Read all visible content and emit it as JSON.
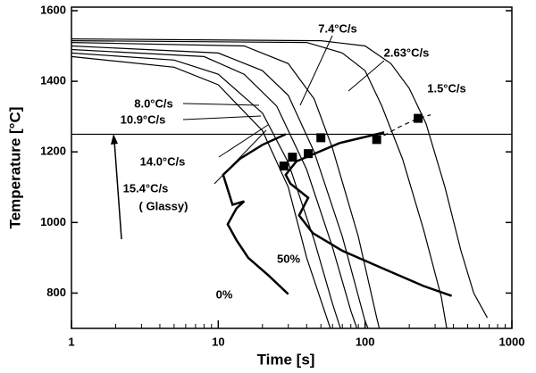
{
  "chart_data": {
    "type": "line",
    "xlabel": "Time [s]",
    "ylabel": "Temperature [°C]",
    "xscale": "log",
    "xlim": [
      1,
      1000
    ],
    "ylim": [
      700,
      1610
    ],
    "xticks": [
      1,
      10,
      100,
      1000
    ],
    "yticks": [
      800,
      1000,
      1200,
      1400,
      1600
    ],
    "reference_line": 1250,
    "series": [
      {
        "name": "15.4°C/s",
        "color": "#000000",
        "x": [
          1,
          5,
          10,
          20,
          30,
          40,
          50,
          58
        ],
        "values": [
          1470,
          1440,
          1390,
          1260,
          1100,
          900,
          780,
          700
        ]
      },
      {
        "name": "14.0°C/s",
        "color": "#000000",
        "x": [
          1,
          5,
          10,
          20,
          30,
          45,
          60,
          68
        ],
        "values": [
          1480,
          1460,
          1420,
          1310,
          1170,
          950,
          770,
          700
        ]
      },
      {
        "name": "10.9°C/s",
        "color": "#000000",
        "x": [
          1,
          8,
          15,
          25,
          40,
          60,
          80,
          88
        ],
        "values": [
          1490,
          1470,
          1420,
          1330,
          1150,
          930,
          750,
          700
        ]
      },
      {
        "name": "8.0°C/s",
        "color": "#000000",
        "x": [
          1,
          10,
          20,
          30,
          45,
          70,
          100,
          105
        ],
        "values": [
          1500,
          1480,
          1430,
          1360,
          1200,
          960,
          720,
          700
        ]
      },
      {
        "name": "7.4°C/s",
        "color": "#000000",
        "x": [
          1,
          15,
          30,
          45,
          60,
          90,
          120,
          125
        ],
        "values": [
          1510,
          1500,
          1450,
          1350,
          1210,
          960,
          730,
          700
        ]
      },
      {
        "name": "2.63°C/s",
        "color": "#000000",
        "x": [
          1,
          40,
          70,
          100,
          130,
          180,
          250,
          330,
          360
        ],
        "values": [
          1515,
          1510,
          1480,
          1430,
          1330,
          1180,
          980,
          790,
          700
        ]
      },
      {
        "name": "1.5°C/s",
        "color": "#000000",
        "x": [
          1,
          50,
          100,
          150,
          200,
          260,
          350,
          450,
          550,
          680
        ],
        "values": [
          1520,
          1515,
          1500,
          1450,
          1380,
          1280,
          1100,
          920,
          800,
          730
        ]
      },
      {
        "name": "0%",
        "color": "#000000",
        "width": 2.5,
        "x": [
          30,
          22,
          16,
          13.3,
          11.6,
          13.3,
          15,
          12.5,
          10.8,
          14,
          20,
          28.8
        ],
        "values": [
          797,
          850,
          900,
          950,
          995,
          1040,
          1060,
          1050,
          1135,
          1180,
          1220,
          1250
        ]
      },
      {
        "name": "50%",
        "color": "#000000",
        "width": 2.5,
        "x": [
          389,
          250,
          135,
          70,
          44,
          35.5,
          41,
          31,
          28.8,
          34,
          67,
          135
        ],
        "values": [
          792,
          820,
          868,
          920,
          970,
          1020,
          1070,
          1110,
          1135,
          1173,
          1225,
          1255
        ]
      },
      {
        "color": "#000000",
        "dash": true,
        "x": [
          120,
          170,
          230,
          280
        ],
        "values": [
          1235,
          1270,
          1295,
          1305
        ]
      }
    ],
    "markers": {
      "color": "#000000",
      "x": [
        28,
        32,
        41,
        50,
        120,
        230
      ],
      "values": [
        1160,
        1185,
        1195,
        1240,
        1235,
        1295
      ]
    },
    "annotations": [
      "( Glassy)"
    ]
  }
}
